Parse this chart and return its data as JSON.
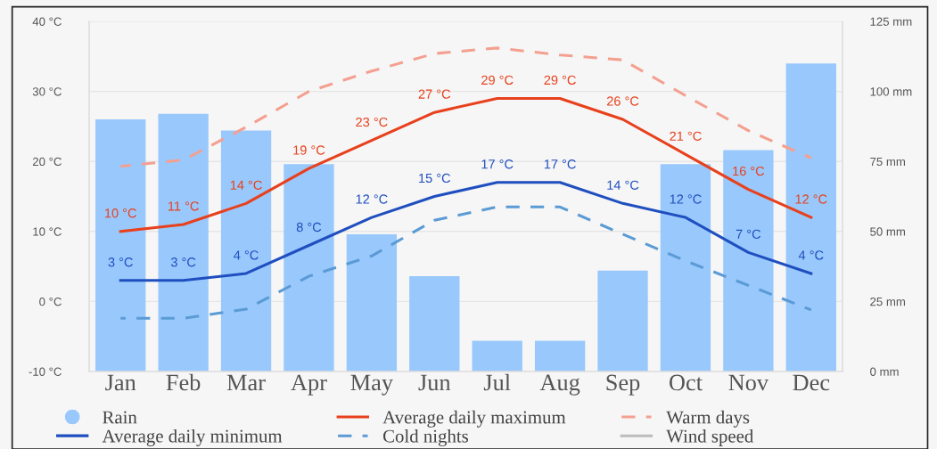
{
  "chart_data": {
    "type": "line",
    "categories": [
      "Jan",
      "Feb",
      "Mar",
      "Apr",
      "May",
      "Jun",
      "Jul",
      "Aug",
      "Sep",
      "Oct",
      "Nov",
      "Dec"
    ],
    "series": [
      {
        "name": "Rain",
        "type": "bar",
        "axis": "y2",
        "color": "#99c8fc",
        "values": [
          90,
          92,
          86,
          74,
          49,
          34,
          11,
          11,
          36,
          74,
          79,
          110
        ]
      },
      {
        "name": "Average daily maximum",
        "color": "#e8401c",
        "line_style": "solid",
        "values": [
          10,
          11,
          14,
          19,
          23,
          27,
          29,
          29,
          26,
          21,
          16,
          12
        ],
        "value_labels": [
          "10 °C",
          "11 °C",
          "14 °C",
          "19 °C",
          "23 °C",
          "27 °C",
          "29 °C",
          "29 °C",
          "26 °C",
          "21 °C",
          "16 °C",
          "12 °C"
        ]
      },
      {
        "name": "Warm days",
        "color": "#f4a090",
        "line_style": "dashed",
        "values": [
          19.3,
          20.2,
          24.9,
          30,
          32.9,
          35.4,
          36.2,
          35.2,
          34.5,
          29.4,
          24.4,
          20.5
        ]
      },
      {
        "name": "Average daily minimum",
        "color": "#1f4fbf",
        "line_style": "solid",
        "values": [
          3,
          3,
          4,
          8,
          12,
          15,
          17,
          17,
          14,
          12,
          7,
          4
        ],
        "value_labels": [
          "3 °C",
          "3 °C",
          "4 °C",
          "8 °C",
          "12 °C",
          "15 °C",
          "17 °C",
          "17 °C",
          "14 °C",
          "12 °C",
          "7 °C",
          "4 °C"
        ]
      },
      {
        "name": "Cold nights",
        "color": "#5b9bd5",
        "line_style": "dashed",
        "values": [
          -2.4,
          -2.4,
          -1.1,
          3.6,
          6.5,
          11.6,
          13.5,
          13.5,
          9.6,
          5.8,
          2.3,
          -1.2
        ]
      },
      {
        "name": "Wind speed",
        "color": "#bbbbbb",
        "line_style": "solid",
        "values": [
          null,
          null,
          null,
          null,
          null,
          null,
          null,
          null,
          null,
          null,
          null,
          null
        ]
      }
    ],
    "ylim": [
      -10,
      40
    ],
    "yticks": [
      {
        "value": -10,
        "label": "-10 °C"
      },
      {
        "value": 0,
        "label": "0 °C"
      },
      {
        "value": 10,
        "label": "10 °C"
      },
      {
        "value": 20,
        "label": "20 °C"
      },
      {
        "value": 30,
        "label": "30 °C"
      },
      {
        "value": 40,
        "label": "40 °C"
      }
    ],
    "y2lim": [
      0,
      125
    ],
    "y2ticks": [
      {
        "value": 0,
        "label": "0 mm"
      },
      {
        "value": 25,
        "label": "25 mm"
      },
      {
        "value": 50,
        "label": "50 mm"
      },
      {
        "value": 75,
        "label": "75 mm"
      },
      {
        "value": 100,
        "label": "100 mm"
      },
      {
        "value": 125,
        "label": "125 mm"
      }
    ],
    "grid": "y",
    "legend": "bottom"
  }
}
